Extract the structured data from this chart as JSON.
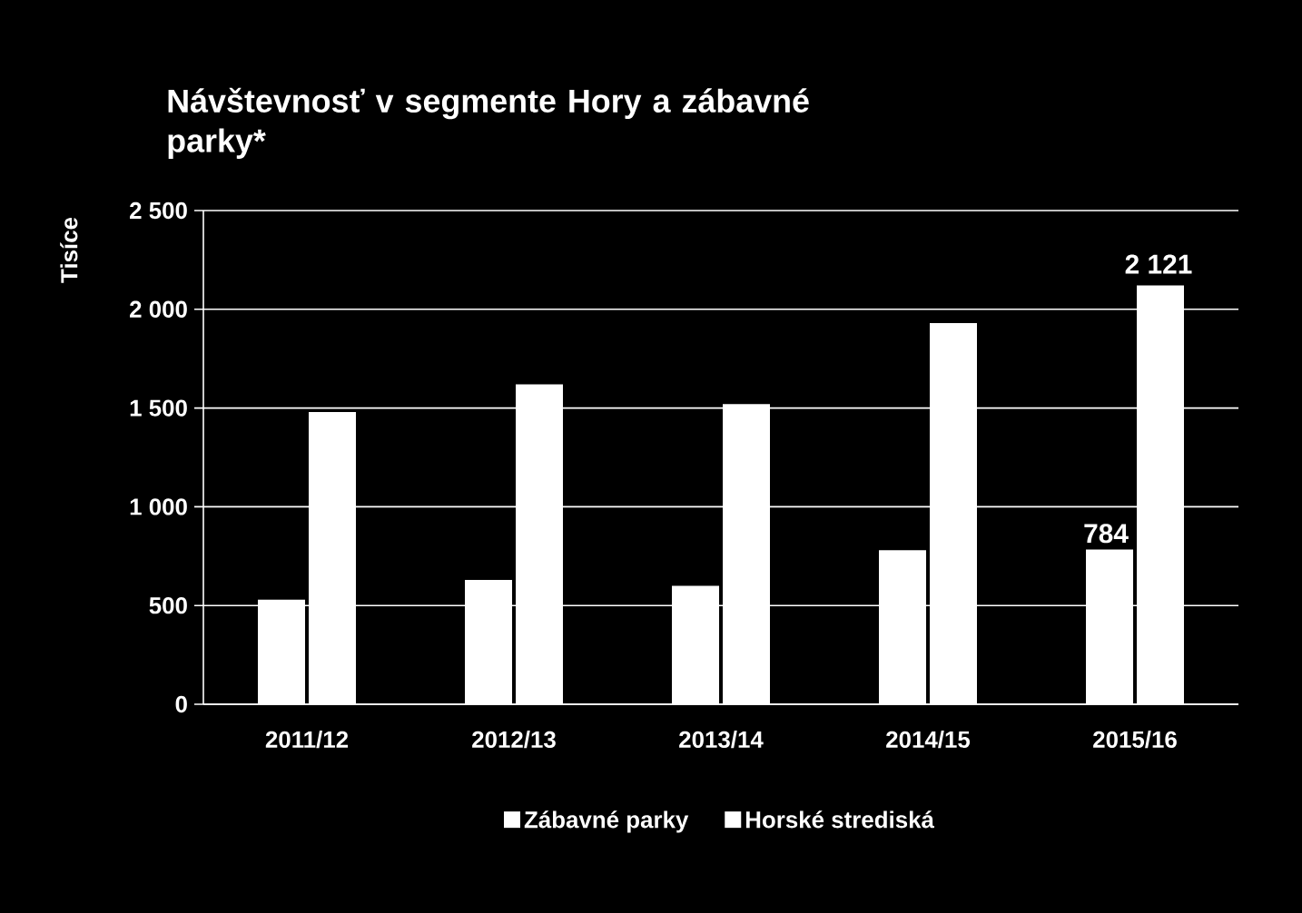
{
  "chart_data": {
    "type": "bar",
    "title": "Návštevnosť v segmente Hory a zábavné parky*",
    "ylabel": "Tisíce",
    "categories": [
      "2011/12",
      "2012/13",
      "2013/14",
      "2014/15",
      "2015/16"
    ],
    "series": [
      {
        "name": "Zábavné parky",
        "color": "#ffffff",
        "values": [
          530,
          630,
          600,
          780,
          784
        ],
        "value_labels": [
          null,
          null,
          null,
          null,
          "784"
        ]
      },
      {
        "name": "Horské strediská",
        "color": "#ffffff",
        "values": [
          1480,
          1620,
          1520,
          1930,
          2121
        ],
        "value_labels": [
          null,
          null,
          null,
          null,
          "2 121"
        ]
      }
    ],
    "ylim": [
      0,
      2500
    ],
    "yticks": [
      {
        "value": 0,
        "label": "0"
      },
      {
        "value": 500,
        "label": "500"
      },
      {
        "value": 1000,
        "label": "1 000"
      },
      {
        "value": 1500,
        "label": "1 500"
      },
      {
        "value": 2000,
        "label": "2 000"
      },
      {
        "value": 2500,
        "label": "2 500"
      }
    ],
    "grid": "y",
    "legend": "bottom"
  }
}
